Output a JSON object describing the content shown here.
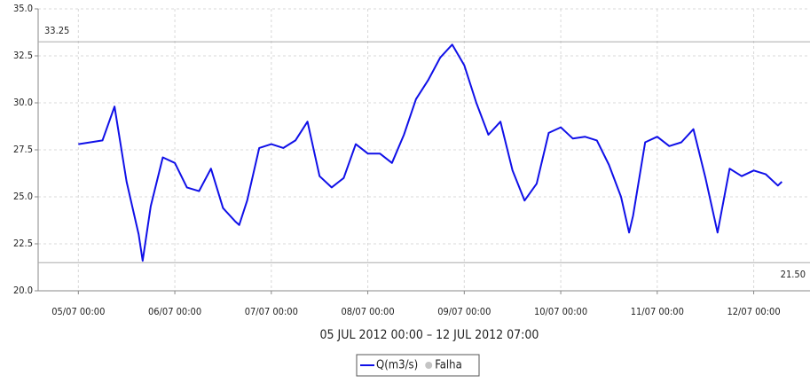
{
  "chart_data": {
    "type": "line",
    "subtitle": "05 JUL 2012 00:00 – 12 JUL 2012 07:00",
    "x": [
      "05/07 00:00",
      "05/07 03:00",
      "05/07 06:00",
      "05/07 09:00",
      "05/07 12:00",
      "05/07 15:00",
      "05/07 16:00",
      "05/07 18:00",
      "05/07 21:00",
      "06/07 00:00",
      "06/07 03:00",
      "06/07 06:00",
      "06/07 09:00",
      "06/07 12:00",
      "06/07 15:00",
      "06/07 16:00",
      "06/07 18:00",
      "06/07 21:00",
      "07/07 00:00",
      "07/07 03:00",
      "07/07 06:00",
      "07/07 09:00",
      "07/07 12:00",
      "07/07 15:00",
      "07/07 18:00",
      "07/07 21:00",
      "08/07 00:00",
      "08/07 03:00",
      "08/07 06:00",
      "08/07 09:00",
      "08/07 12:00",
      "08/07 15:00",
      "08/07 18:00",
      "08/07 21:00",
      "09/07 00:00",
      "09/07 03:00",
      "09/07 06:00",
      "09/07 09:00",
      "09/07 12:00",
      "09/07 15:00",
      "09/07 18:00",
      "09/07 21:00",
      "10/07 00:00",
      "10/07 03:00",
      "10/07 06:00",
      "10/07 09:00",
      "10/07 12:00",
      "10/07 15:00",
      "10/07 17:00",
      "10/07 18:00",
      "10/07 21:00",
      "11/07 00:00",
      "11/07 03:00",
      "11/07 06:00",
      "11/07 09:00",
      "11/07 12:00",
      "11/07 15:00",
      "11/07 18:00",
      "11/07 21:00",
      "12/07 00:00",
      "12/07 03:00",
      "12/07 06:00",
      "12/07 07:00"
    ],
    "series": [
      {
        "name": "Q(m3/s)",
        "color": "#1010e8",
        "values": [
          27.8,
          27.9,
          28.0,
          29.8,
          25.8,
          23.0,
          21.6,
          24.5,
          27.1,
          26.8,
          25.5,
          25.3,
          26.5,
          24.4,
          23.7,
          23.5,
          24.8,
          27.6,
          27.8,
          27.6,
          28.0,
          29.0,
          26.1,
          25.5,
          26.0,
          27.8,
          27.3,
          27.3,
          26.8,
          28.3,
          30.2,
          31.2,
          32.4,
          33.1,
          32.0,
          30.0,
          28.3,
          29.0,
          26.4,
          24.8,
          25.7,
          28.4,
          28.7,
          28.1,
          28.2,
          28.0,
          26.7,
          25.0,
          23.1,
          24.0,
          27.9,
          28.2,
          27.7,
          27.9,
          28.6,
          26.0,
          23.1,
          26.5,
          26.1,
          26.4,
          26.2,
          25.6,
          25.8
        ]
      }
    ],
    "legend_markers": [
      {
        "name": "Falha",
        "color": "#c4c4c4"
      }
    ],
    "reference_lines": [
      {
        "value": 33.25,
        "label": "33.25"
      },
      {
        "value": 21.5,
        "label": "21.50"
      }
    ],
    "xlim": [
      "04/07 14:00",
      "12/07 14:00"
    ],
    "xticks": [
      "05/07 00:00",
      "06/07 00:00",
      "07/07 00:00",
      "08/07 00:00",
      "09/07 00:00",
      "10/07 00:00",
      "11/07 00:00",
      "12/07 00:00"
    ],
    "ylim": [
      20,
      35
    ],
    "yticks": [
      {
        "value": 20,
        "label": "20.0"
      },
      {
        "value": 22.5,
        "label": "22.5"
      },
      {
        "value": 25,
        "label": "25.0"
      },
      {
        "value": 27.5,
        "label": "27.5"
      },
      {
        "value": 30,
        "label": "30.0"
      },
      {
        "value": 32.5,
        "label": "32.5"
      },
      {
        "value": 35,
        "label": "35.0"
      }
    ],
    "grid": true
  }
}
